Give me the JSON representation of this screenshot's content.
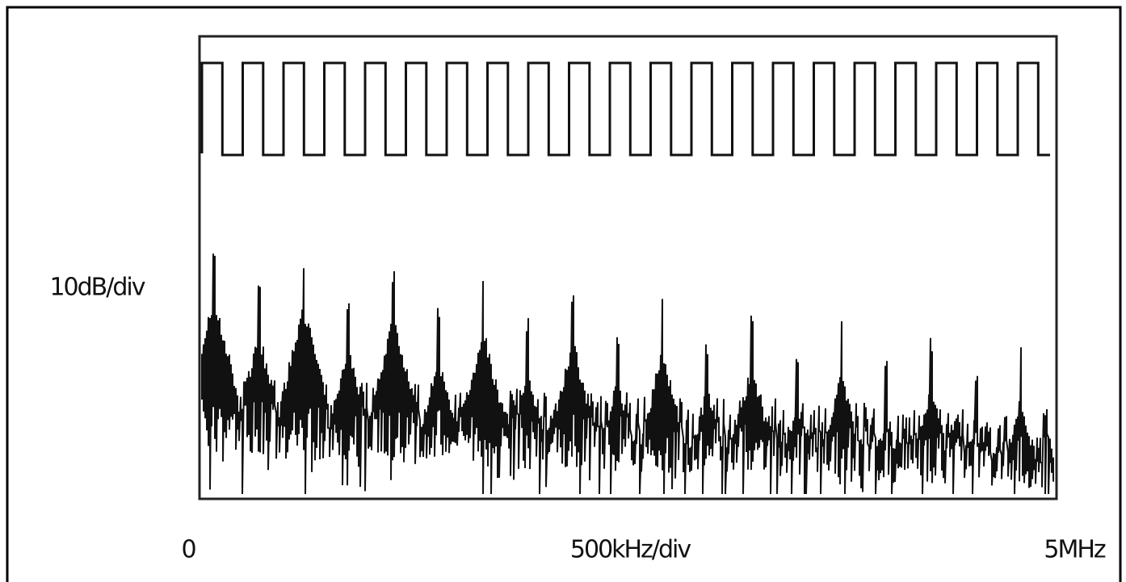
{
  "labels": {
    "y_scale": "10dB/div",
    "x_start": "0",
    "x_scale": "500kHz/div",
    "x_end": "5MHz"
  }
}
